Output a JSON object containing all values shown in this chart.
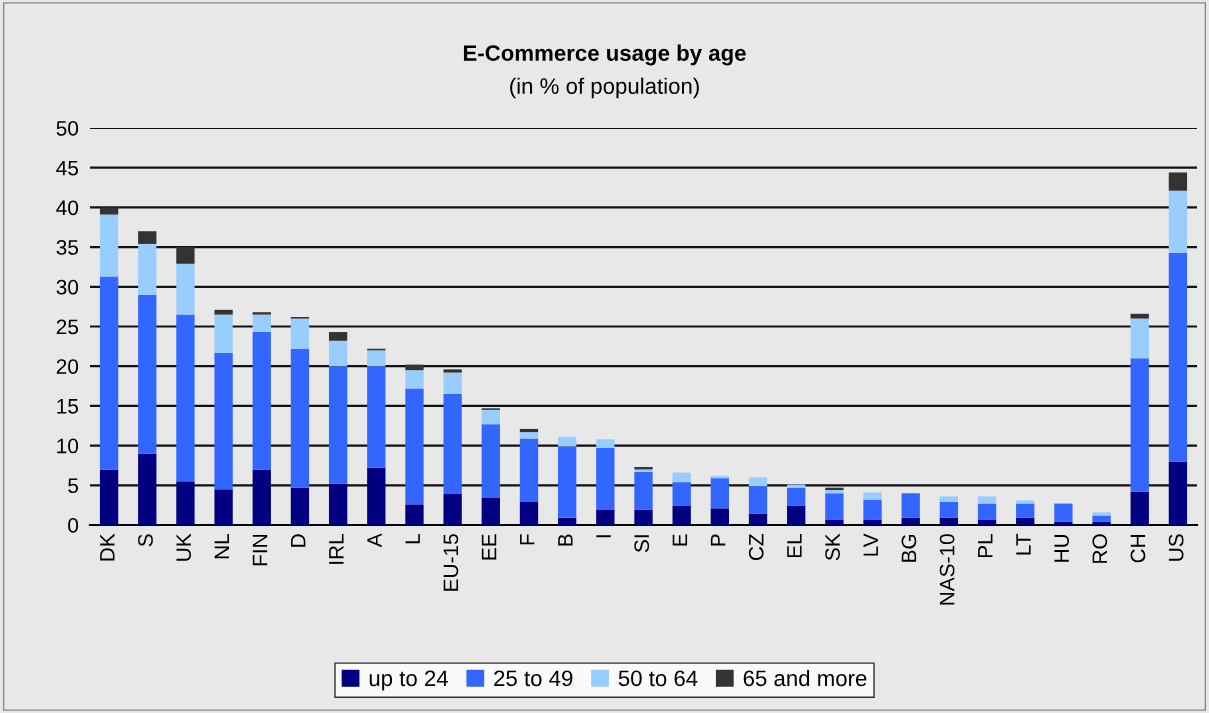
{
  "chart_data": {
    "type": "bar",
    "title": "E-Commerce usage by age",
    "subtitle": "(in % of population)",
    "stacked": true,
    "categories": [
      "DK",
      "S",
      "UK",
      "NL",
      "FIN",
      "D",
      "IRL",
      "A",
      "L",
      "EU-15",
      "EE",
      "F",
      "B",
      "I",
      "SI",
      "E",
      "P",
      "CZ",
      "EL",
      "SK",
      "LV",
      "BG",
      "NAS-10",
      "PL",
      "LT",
      "HU",
      "RO",
      "CH",
      "US"
    ],
    "series": [
      {
        "name": "up to 24",
        "color": "#000080",
        "values": [
          7,
          9,
          5.5,
          4.5,
          7,
          4.7,
          5.2,
          7.2,
          2.6,
          3.9,
          3.4,
          2.9,
          0.9,
          1.9,
          1.9,
          2.4,
          2.1,
          1.4,
          2.4,
          0.7,
          0.7,
          0.9,
          0.9,
          0.7,
          0.9,
          0.4,
          0.4,
          4.2,
          8
        ]
      },
      {
        "name": "25 to 49",
        "color": "#3366ff",
        "values": [
          24.3,
          20,
          21,
          17.2,
          17.3,
          17.5,
          14.8,
          12.8,
          14.6,
          12.6,
          9.3,
          8,
          9,
          7.8,
          4.8,
          3,
          3.8,
          3.5,
          2.3,
          3.3,
          2.5,
          3.1,
          2,
          2,
          1.8,
          2.3,
          0.8,
          16.8,
          26.3
        ]
      },
      {
        "name": "50 to 64",
        "color": "#99ccff",
        "values": [
          7.8,
          6.4,
          6.4,
          4.8,
          2.2,
          3.8,
          3.2,
          2,
          2.3,
          2.7,
          1.8,
          0.8,
          1.2,
          1.1,
          0.3,
          1.2,
          0.3,
          1.1,
          0.4,
          0.4,
          0.9,
          0,
          0.7,
          0.9,
          0.4,
          0,
          0.4,
          5,
          7.8
        ]
      },
      {
        "name": "65 and more",
        "color": "#333333",
        "values": [
          0.9,
          1.6,
          2.1,
          0.6,
          0.3,
          0.2,
          1.1,
          0.2,
          0.7,
          0.4,
          0.2,
          0.4,
          0,
          0,
          0.3,
          0,
          0,
          0,
          0,
          0.3,
          0,
          0,
          0,
          0,
          0,
          0,
          0,
          0.6,
          2.3
        ]
      }
    ],
    "ylim": [
      0,
      50
    ],
    "yticks": [
      0,
      5,
      10,
      15,
      20,
      25,
      30,
      35,
      40,
      45,
      50
    ],
    "grid": "y",
    "legend": "bottom"
  }
}
